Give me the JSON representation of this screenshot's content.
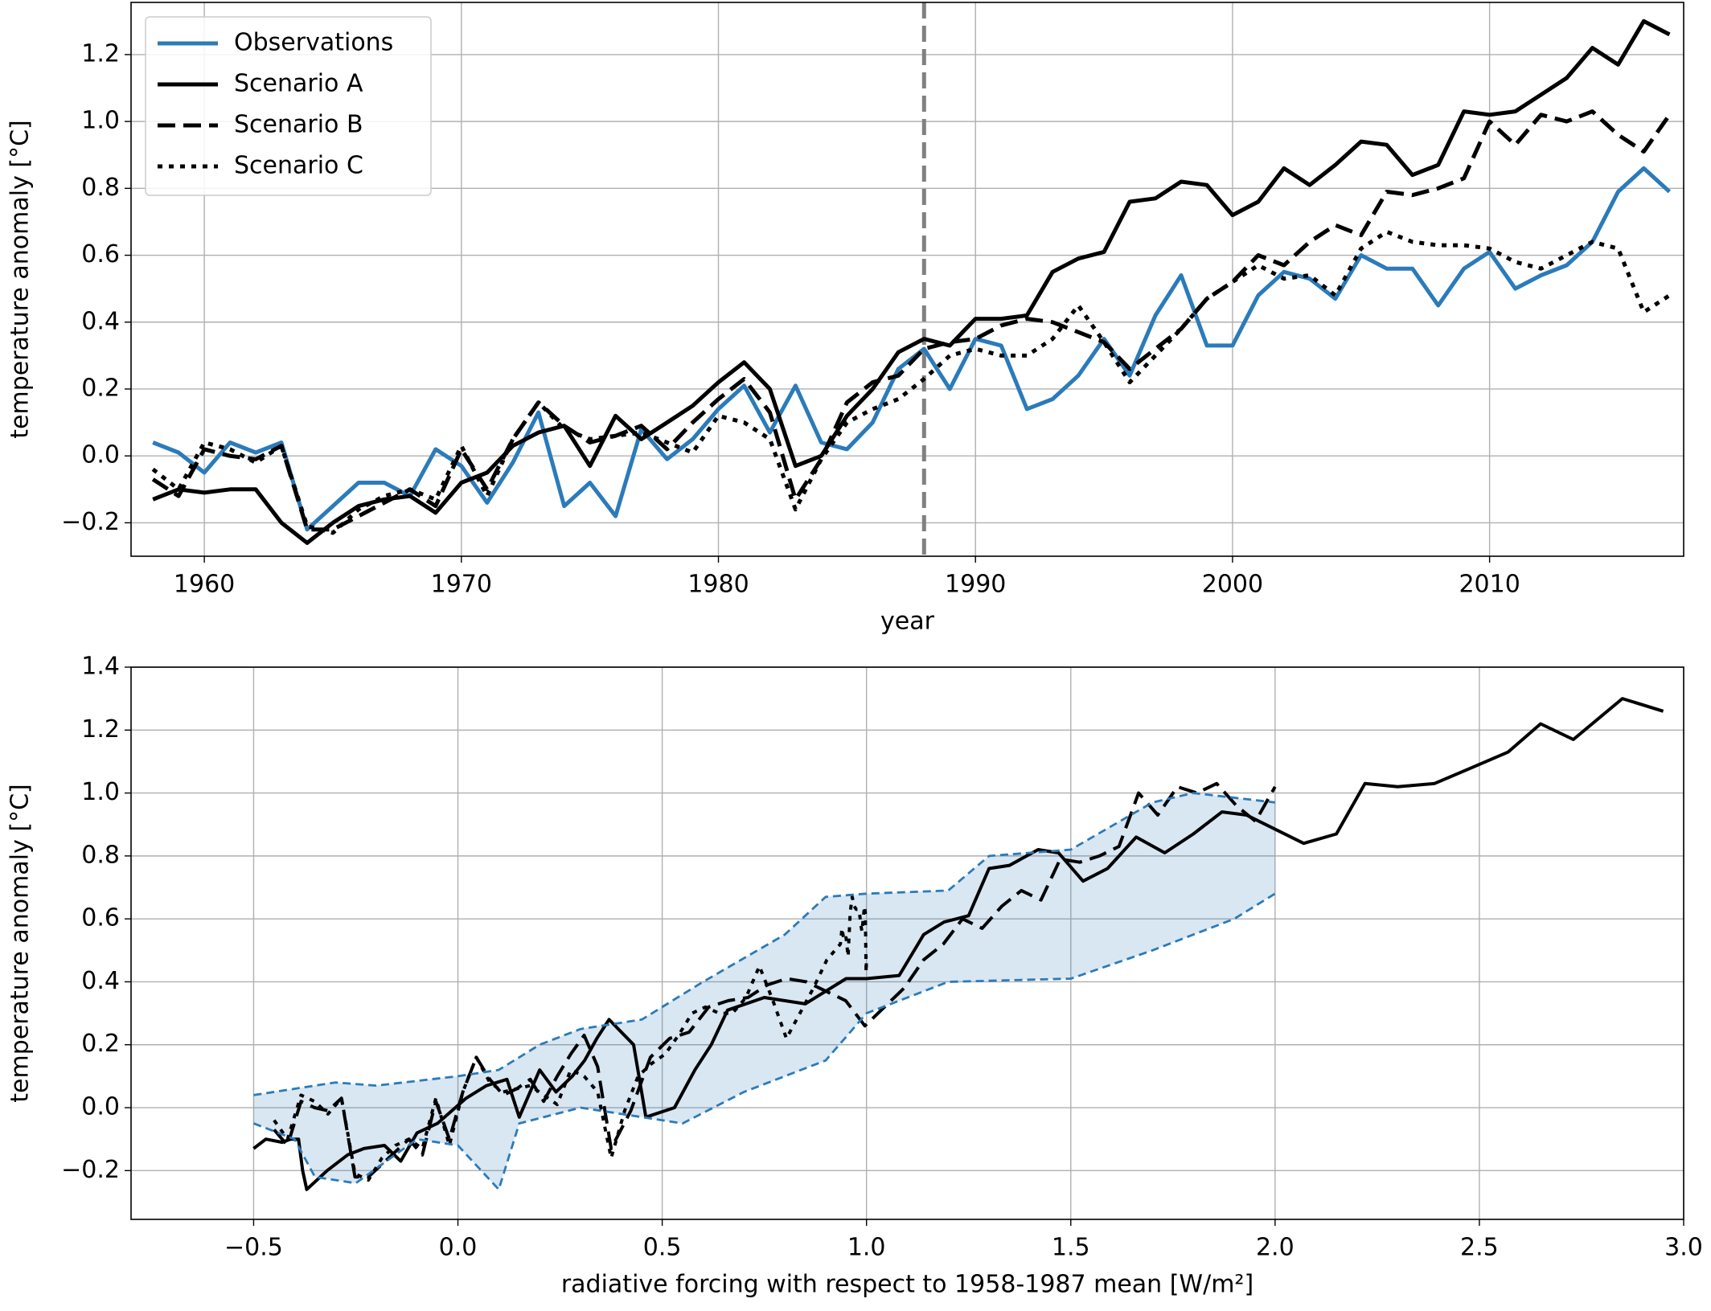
{
  "chart_data": [
    {
      "type": "line",
      "xlabel": "year",
      "ylabel": "temperature anomaly [°C]",
      "x": [
        1958,
        1959,
        1960,
        1961,
        1962,
        1963,
        1964,
        1965,
        1966,
        1967,
        1968,
        1969,
        1970,
        1971,
        1972,
        1973,
        1974,
        1975,
        1976,
        1977,
        1978,
        1979,
        1980,
        1981,
        1982,
        1983,
        1984,
        1985,
        1986,
        1987,
        1988,
        1989,
        1990,
        1991,
        1992,
        1993,
        1994,
        1995,
        1996,
        1997,
        1998,
        1999,
        2000,
        2001,
        2002,
        2003,
        2004,
        2005,
        2006,
        2007,
        2008,
        2009,
        2010,
        2011,
        2012,
        2013,
        2014,
        2015,
        2016,
        2017
      ],
      "xlim": [
        1957.15,
        2017.55
      ],
      "xticks": [
        1960,
        1970,
        1980,
        1990,
        2000,
        2010
      ],
      "ylim": [
        -0.3,
        1.356
      ],
      "yticks": [
        {
          "value": -0.2,
          "label": "−0.2"
        },
        {
          "value": 0,
          "label": "0.0"
        },
        0.2,
        0.4,
        0.6,
        0.8,
        {
          "value": 1,
          "label": "1.0"
        },
        1.2
      ],
      "grid": true,
      "legend": "upper left",
      "vline": 1988,
      "vline_color": "#808080",
      "series": [
        {
          "name": "Observations",
          "color": "#2b7bba",
          "dash": "solid",
          "values": [
            0.04,
            0.01,
            -0.05,
            0.04,
            0.01,
            0.04,
            -0.22,
            -0.15,
            -0.08,
            -0.08,
            -0.12,
            0.02,
            -0.03,
            -0.14,
            -0.02,
            0.13,
            -0.15,
            -0.08,
            -0.18,
            0.08,
            -0.01,
            0.05,
            0.14,
            0.21,
            0.07,
            0.21,
            0.04,
            0.02,
            0.1,
            0.26,
            0.32,
            0.2,
            0.35,
            0.33,
            0.14,
            0.17,
            0.24,
            0.35,
            0.24,
            0.42,
            0.54,
            0.33,
            0.33,
            0.48,
            0.55,
            0.53,
            0.47,
            0.6,
            0.56,
            0.56,
            0.45,
            0.56,
            0.61,
            0.5,
            0.54,
            0.57,
            0.64,
            0.79,
            0.86,
            0.79
          ]
        },
        {
          "name": "Scenario A",
          "color": "#000000",
          "dash": "solid",
          "values": [
            -0.13,
            -0.1,
            -0.11,
            -0.1,
            -0.1,
            -0.2,
            -0.26,
            -0.2,
            -0.15,
            -0.13,
            -0.12,
            -0.17,
            -0.08,
            -0.05,
            0.03,
            0.07,
            0.09,
            -0.03,
            0.12,
            0.05,
            0.1,
            0.15,
            0.22,
            0.28,
            0.2,
            -0.03,
            0.0,
            0.12,
            0.2,
            0.31,
            0.35,
            0.33,
            0.41,
            0.41,
            0.42,
            0.55,
            0.59,
            0.61,
            0.76,
            0.77,
            0.82,
            0.81,
            0.72,
            0.76,
            0.86,
            0.81,
            0.87,
            0.94,
            0.93,
            0.84,
            0.87,
            1.03,
            1.02,
            1.03,
            1.08,
            1.13,
            1.22,
            1.17,
            1.3,
            1.26
          ]
        },
        {
          "name": "Scenario B",
          "color": "#000000",
          "dash": "dashed",
          "values": [
            -0.07,
            -0.12,
            0.02,
            0.0,
            -0.01,
            0.03,
            -0.22,
            -0.22,
            -0.18,
            -0.14,
            -0.1,
            -0.15,
            0.02,
            -0.1,
            0.05,
            0.16,
            0.09,
            0.04,
            0.06,
            0.09,
            0.02,
            0.1,
            0.17,
            0.23,
            0.13,
            -0.13,
            -0.01,
            0.16,
            0.22,
            0.24,
            0.32,
            0.34,
            0.35,
            0.39,
            0.41,
            0.4,
            0.37,
            0.34,
            0.26,
            0.32,
            0.38,
            0.47,
            0.52,
            0.6,
            0.57,
            0.64,
            0.69,
            0.66,
            0.79,
            0.78,
            0.8,
            0.83,
            1.0,
            0.93,
            1.02,
            1.0,
            1.03,
            0.96,
            0.91,
            1.02
          ]
        },
        {
          "name": "Scenario C",
          "color": "#000000",
          "dash": "dotted",
          "values": [
            -0.04,
            -0.1,
            0.04,
            0.02,
            -0.02,
            0.03,
            -0.21,
            -0.23,
            -0.16,
            -0.12,
            -0.1,
            -0.13,
            0.03,
            -0.12,
            0.05,
            0.16,
            0.08,
            0.05,
            0.06,
            0.07,
            0.04,
            0.01,
            0.12,
            0.1,
            0.05,
            -0.16,
            -0.01,
            0.1,
            0.14,
            0.17,
            0.23,
            0.3,
            0.32,
            0.3,
            0.3,
            0.35,
            0.45,
            0.34,
            0.22,
            0.3,
            0.38,
            0.47,
            0.52,
            0.57,
            0.53,
            0.54,
            0.48,
            0.62,
            0.67,
            0.64,
            0.63,
            0.63,
            0.62,
            0.58,
            0.56,
            0.6,
            0.64,
            0.62,
            0.43,
            0.48
          ]
        }
      ]
    },
    {
      "type": "line",
      "xlabel": "radiative forcing with respect to 1958-1987 mean [W/m²]",
      "ylabel": "temperature anomaly [°C]",
      "xlim": [
        -0.8,
        3.0
      ],
      "xticks": [
        {
          "value": -0.5,
          "label": "−0.5"
        },
        {
          "value": 0,
          "label": "0.0"
        },
        0.5,
        {
          "value": 1,
          "label": "1.0"
        },
        1.5,
        {
          "value": 2,
          "label": "2.0"
        },
        2.5,
        {
          "value": 3,
          "label": "3.0"
        }
      ],
      "ylim": [
        -0.355,
        1.4
      ],
      "yticks": [
        {
          "value": -0.2,
          "label": "−0.2"
        },
        {
          "value": 0,
          "label": "0.0"
        },
        0.2,
        0.4,
        0.6,
        0.8,
        {
          "value": 1,
          "label": "1.0"
        },
        1.2,
        1.4
      ],
      "grid": true,
      "series": [
        {
          "color": "#000000",
          "dash": "solid",
          "x": [
            -0.5,
            -0.47,
            -0.43,
            -0.41,
            -0.39,
            -0.38,
            -0.37,
            -0.32,
            -0.27,
            -0.23,
            -0.18,
            -0.14,
            -0.1,
            -0.05,
            0.02,
            0.07,
            0.12,
            0.15,
            0.2,
            0.24,
            0.28,
            0.31,
            0.34,
            0.37,
            0.43,
            0.46,
            0.53,
            0.58,
            0.62,
            0.66,
            0.75,
            0.85,
            0.95,
            1.0,
            1.08,
            1.14,
            1.19,
            1.25,
            1.3,
            1.35,
            1.42,
            1.47,
            1.53,
            1.59,
            1.66,
            1.73,
            1.8,
            1.87,
            1.93,
            2.07,
            2.15,
            2.22,
            2.3,
            2.39,
            2.48,
            2.57,
            2.65,
            2.73,
            2.85,
            2.95
          ],
          "values": [
            -0.13,
            -0.1,
            -0.11,
            -0.1,
            -0.1,
            -0.2,
            -0.26,
            -0.2,
            -0.15,
            -0.13,
            -0.12,
            -0.17,
            -0.08,
            -0.05,
            0.03,
            0.07,
            0.09,
            -0.03,
            0.12,
            0.05,
            0.1,
            0.15,
            0.22,
            0.28,
            0.2,
            -0.03,
            0.0,
            0.12,
            0.2,
            0.31,
            0.35,
            0.33,
            0.41,
            0.41,
            0.42,
            0.55,
            0.59,
            0.61,
            0.76,
            0.77,
            0.82,
            0.81,
            0.72,
            0.76,
            0.86,
            0.81,
            0.87,
            0.94,
            0.93,
            0.84,
            0.87,
            1.03,
            1.02,
            1.03,
            1.08,
            1.13,
            1.22,
            1.17,
            1.3,
            1.26
          ]
        },
        {
          "color": "#000000",
          "dash": "dashed",
          "x": [
            -0.45,
            -0.417,
            -0.384,
            -0.351,
            -0.318,
            -0.285,
            -0.252,
            -0.219,
            -0.186,
            -0.153,
            -0.12,
            -0.087,
            -0.054,
            -0.021,
            0.012,
            0.045,
            0.078,
            0.111,
            0.144,
            0.177,
            0.21,
            0.243,
            0.276,
            0.309,
            0.342,
            0.375,
            0.423,
            0.471,
            0.518,
            0.566,
            0.614,
            0.662,
            0.71,
            0.757,
            0.805,
            0.853,
            0.901,
            0.949,
            0.996,
            1.044,
            1.092,
            1.14,
            1.188,
            1.235,
            1.283,
            1.331,
            1.379,
            1.427,
            1.474,
            1.522,
            1.57,
            1.618,
            1.666,
            1.713,
            1.761,
            1.809,
            1.857,
            1.905,
            1.952,
            2.0
          ],
          "values": [
            -0.07,
            -0.12,
            0.02,
            0.0,
            -0.01,
            0.03,
            -0.22,
            -0.22,
            -0.18,
            -0.14,
            -0.1,
            -0.15,
            0.02,
            -0.1,
            0.05,
            0.16,
            0.09,
            0.04,
            0.06,
            0.09,
            0.02,
            0.1,
            0.17,
            0.23,
            0.13,
            -0.13,
            -0.01,
            0.16,
            0.22,
            0.24,
            0.32,
            0.34,
            0.35,
            0.39,
            0.41,
            0.4,
            0.37,
            0.34,
            0.26,
            0.32,
            0.38,
            0.47,
            0.52,
            0.6,
            0.57,
            0.64,
            0.69,
            0.66,
            0.79,
            0.78,
            0.8,
            0.83,
            1.0,
            0.93,
            1.02,
            1.0,
            1.03,
            0.96,
            0.91,
            1.02
          ]
        },
        {
          "color": "#000000",
          "dash": "dotted",
          "x": [
            -0.45,
            -0.417,
            -0.384,
            -0.351,
            -0.318,
            -0.285,
            -0.252,
            -0.219,
            -0.186,
            -0.153,
            -0.12,
            -0.087,
            -0.054,
            -0.021,
            0.012,
            0.045,
            0.078,
            0.111,
            0.144,
            0.177,
            0.21,
            0.243,
            0.276,
            0.309,
            0.342,
            0.375,
            0.408,
            0.441,
            0.474,
            0.507,
            0.54,
            0.573,
            0.606,
            0.639,
            0.672,
            0.705,
            0.738,
            0.771,
            0.804,
            0.837,
            0.87,
            0.903,
            0.936,
            0.94,
            0.945,
            0.95,
            0.955,
            0.96,
            0.965,
            0.97,
            0.975,
            0.98,
            0.983,
            0.986,
            0.989,
            0.992,
            0.995,
            0.997,
            0.999,
            1.0
          ],
          "values": [
            -0.04,
            -0.1,
            0.04,
            0.02,
            -0.02,
            0.03,
            -0.21,
            -0.23,
            -0.16,
            -0.12,
            -0.1,
            -0.13,
            0.03,
            -0.12,
            0.05,
            0.16,
            0.08,
            0.05,
            0.06,
            0.07,
            0.04,
            0.01,
            0.12,
            0.1,
            0.05,
            -0.16,
            -0.01,
            0.1,
            0.14,
            0.17,
            0.23,
            0.3,
            0.32,
            0.3,
            0.3,
            0.35,
            0.45,
            0.34,
            0.22,
            0.3,
            0.38,
            0.47,
            0.52,
            0.57,
            0.53,
            0.54,
            0.48,
            0.62,
            0.67,
            0.64,
            0.63,
            0.63,
            0.62,
            0.58,
            0.56,
            0.6,
            0.64,
            0.62,
            0.43,
            0.48
          ]
        },
        {
          "color": "#2b7bba",
          "dash": "dashed",
          "x": [
            -0.5,
            -0.3,
            -0.2,
            0,
            0.1,
            0.2,
            0.3,
            0.45,
            0.6,
            0.8,
            0.9,
            1.0,
            1.2,
            1.3,
            1.5,
            1.7,
            1.8,
            2.0
          ],
          "values": [
            0.04,
            0.08,
            0.07,
            0.1,
            0.12,
            0.2,
            0.25,
            0.28,
            0.4,
            0.55,
            0.67,
            0.68,
            0.69,
            0.8,
            0.82,
            0.97,
            1.0,
            0.97
          ]
        },
        {
          "color": "#2b7bba",
          "dash": "dashed",
          "x": [
            -0.5,
            -0.4,
            -0.35,
            -0.25,
            -0.1,
            0,
            0.1,
            0.15,
            0.3,
            0.45,
            0.55,
            0.7,
            0.9,
            1.0,
            1.2,
            1.5,
            1.7,
            1.9,
            2.0
          ],
          "values": [
            -0.05,
            -0.1,
            -0.22,
            -0.24,
            -0.1,
            -0.12,
            -0.26,
            -0.05,
            0.0,
            -0.03,
            -0.05,
            0.05,
            0.15,
            0.3,
            0.4,
            0.41,
            0.5,
            0.6,
            0.68
          ]
        }
      ]
    }
  ]
}
